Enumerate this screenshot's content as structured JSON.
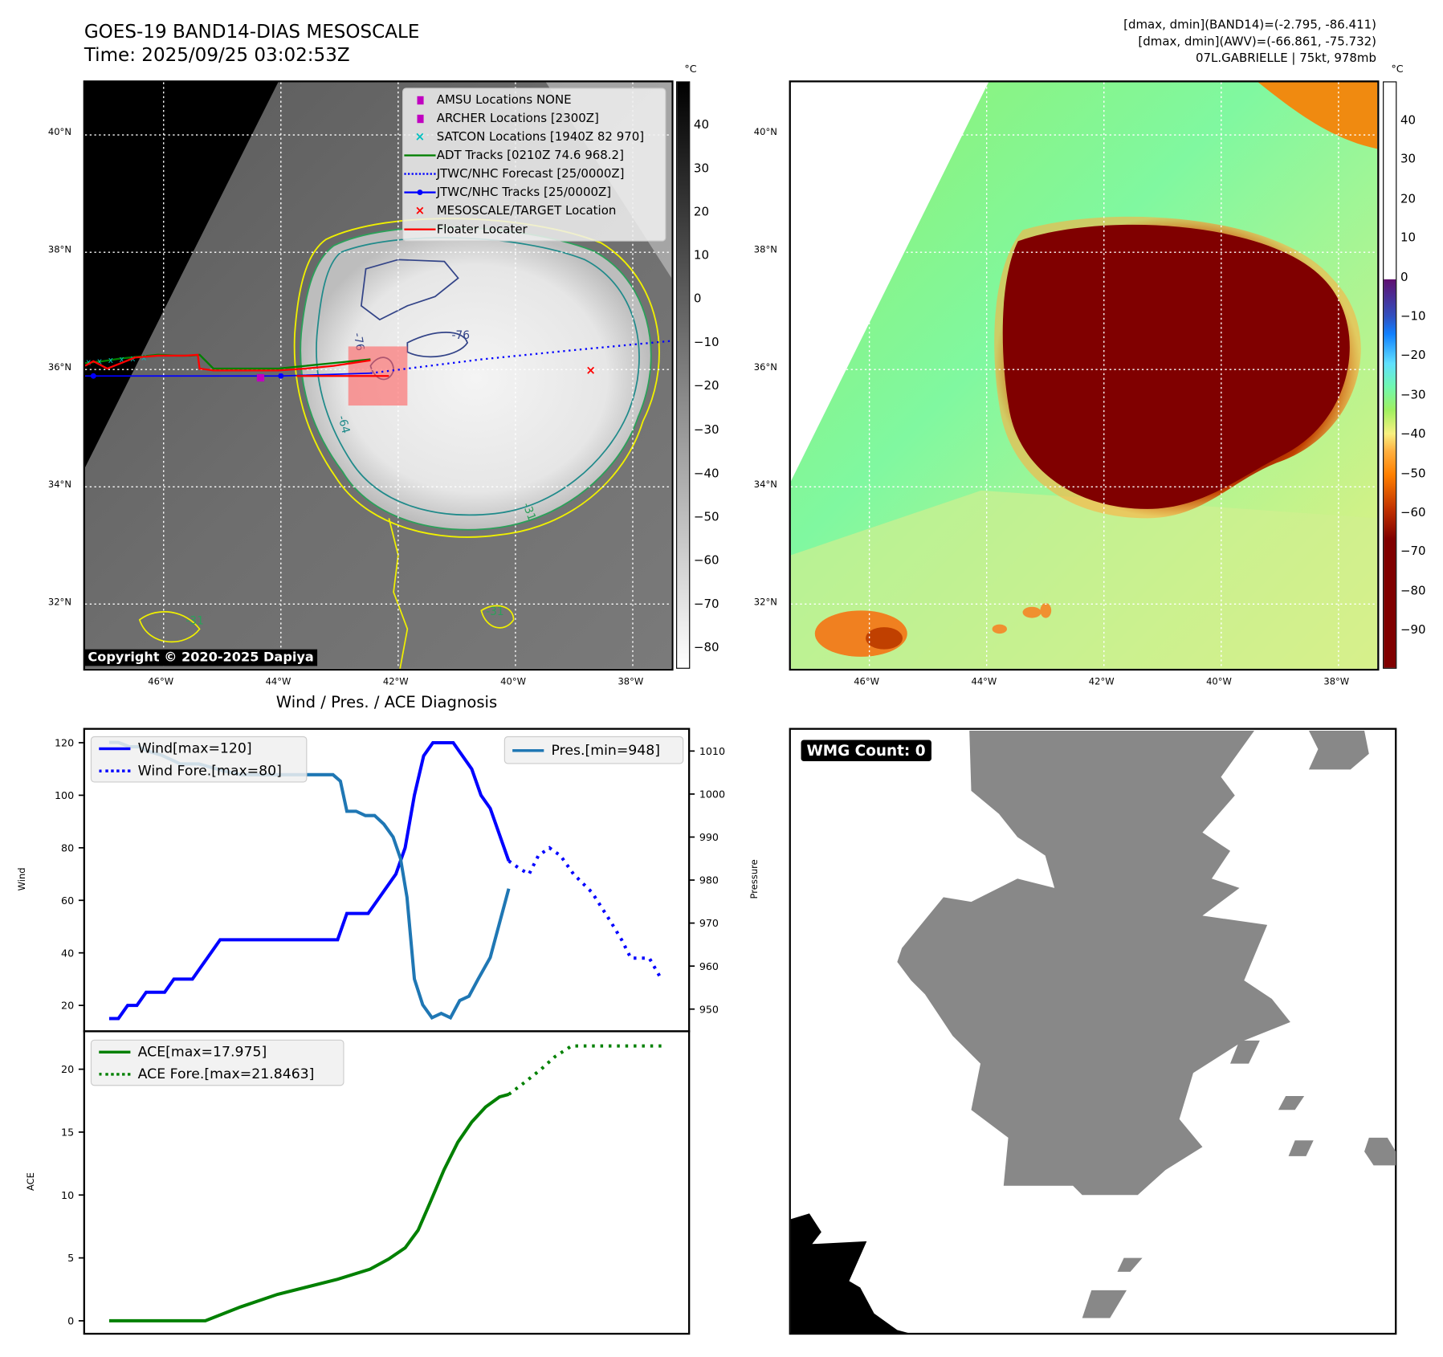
{
  "header": {
    "title_line1": "GOES-19 BAND14-DIAS MESOSCALE",
    "title_line2": "Time: 2025/09/25 03:02:53Z",
    "info_line1": "[dmax, dmin](BAND14)=(-2.795, -86.411)",
    "info_line2": "[dmax, dmin](AWV)=(-66.861, -75.732)",
    "info_line3": "07L.GABRIELLE | 75kt, 978mb"
  },
  "maps": {
    "lat_labels": [
      "40°N",
      "38°N",
      "36°N",
      "34°N",
      "32°N"
    ],
    "lon_labels": [
      "46°W",
      "44°W",
      "42°W",
      "40°W",
      "38°W"
    ],
    "unit": "°C",
    "gray_colorbar_ticks": [
      "40",
      "30",
      "20",
      "10",
      "0",
      "−10",
      "−20",
      "−30",
      "−40",
      "−50",
      "−60",
      "−70",
      "−80"
    ],
    "color_colorbar_ticks": [
      "40",
      "30",
      "20",
      "10",
      "0",
      "−10",
      "−20",
      "−30",
      "−40",
      "−50",
      "−60",
      "−70",
      "−80",
      "−90"
    ],
    "contour_labels": [
      "-76",
      "-76",
      "-64",
      "-31",
      "-31",
      "-31"
    ],
    "copyright": "Copyright © 2020-2025 Dapiya",
    "legend": [
      {
        "label": "AMSU Locations NONE",
        "color": "#c000c0",
        "symbol": "square"
      },
      {
        "label": "ARCHER Locations [2300Z]",
        "color": "#c000c0",
        "symbol": "square"
      },
      {
        "label": "SATCON Locations [1940Z 82 970]",
        "color": "#00c0c0",
        "symbol": "x"
      },
      {
        "label": "ADT Tracks [0210Z 74.6 968.2]",
        "color": "#008000",
        "symbol": "line"
      },
      {
        "label": "JTWC/NHC Forecast [25/0000Z]",
        "color": "#0000ff",
        "symbol": "dotted"
      },
      {
        "label": "JTWC/NHC Tracks [25/0000Z]",
        "color": "#0000ff",
        "symbol": "line-dot"
      },
      {
        "label": "MESOSCALE/TARGET Location",
        "color": "#ff0000",
        "symbol": "x"
      },
      {
        "label": "Floater Locater",
        "color": "#ff0000",
        "symbol": "line"
      }
    ]
  },
  "wmg": {
    "label": "WMG Count: 0"
  },
  "chart_data": [
    {
      "type": "line",
      "title": "Wind / Pres. / ACE Diagnosis",
      "ylabel": "Wind",
      "y2label": "Pressure",
      "xlim": [
        -2.7,
        62.7
      ],
      "ylim": [
        10,
        125
      ],
      "y2lim": [
        945,
        1014
      ],
      "yticks": [
        20,
        40,
        60,
        80,
        100,
        120
      ],
      "y2ticks": [
        950,
        960,
        970,
        980,
        990,
        1000,
        1010
      ],
      "series": [
        {
          "name": "Wind[max=120]",
          "axis": "left",
          "color": "#0000ff",
          "style": "solid",
          "x": [
            0,
            1,
            2,
            3,
            4,
            6,
            7,
            9,
            12,
            24.7,
            25.7,
            28,
            31,
            32,
            33,
            34,
            35,
            37.2,
            39.2,
            40.2,
            41.2,
            43.2
          ],
          "y": [
            15,
            15,
            20,
            20,
            25,
            25,
            30,
            30,
            45,
            45,
            55,
            55,
            70,
            80,
            100,
            115,
            120,
            120,
            110,
            100,
            95,
            75
          ]
        },
        {
          "name": "Wind Fore.[max=80]",
          "axis": "left",
          "color": "#0000ff",
          "style": "dotted",
          "x": [
            43.2,
            44.4,
            45.4,
            46.4,
            47.6,
            48.8,
            50.2,
            52.2,
            54.2,
            55.4,
            56.4,
            58.4,
            59.7
          ],
          "y": [
            75,
            72,
            70,
            77,
            80,
            77,
            70,
            63,
            52,
            45,
            38,
            38,
            30
          ]
        },
        {
          "name": "Pres.[min=948]",
          "axis": "right",
          "color": "#1f77b4",
          "style": "solid",
          "x": [
            0,
            1,
            2.2,
            3.2,
            4.2,
            5.7,
            7.7,
            9.7,
            12.2,
            14.2,
            24.2,
            25,
            25.7,
            26.7,
            27.7,
            28.7,
            29.7,
            30.7,
            31.5,
            32.2,
            33,
            33.9,
            34.9,
            35.9,
            36.9,
            37.9,
            38.9,
            39.9,
            41.2,
            43.2
          ],
          "y": [
            1012,
            1012,
            1011,
            1011,
            1010,
            1009,
            1007,
            1007,
            1005.5,
            1004.5,
            1004.5,
            1003,
            996,
            996,
            995,
            995,
            993,
            990,
            985,
            976,
            957,
            951,
            948,
            949,
            948,
            952,
            953,
            957,
            962,
            978
          ]
        }
      ]
    },
    {
      "type": "line",
      "ylabel": "ACE",
      "xlim": [
        -2.7,
        62.7
      ],
      "ylim": [
        -1.1,
        23
      ],
      "yticks": [
        0,
        5,
        10,
        15,
        20
      ],
      "series": [
        {
          "name": "ACE[max=17.975]",
          "color": "#008000",
          "style": "solid",
          "x": [
            0,
            10.4,
            14.2,
            18.2,
            24.7,
            28.2,
            30.2,
            32,
            33.4,
            34.7,
            36.2,
            37.7,
            39.2,
            40.7,
            42.2,
            43.2
          ],
          "y": [
            0,
            0,
            1.1,
            2.1,
            3.3,
            4.1,
            4.9,
            5.8,
            7.2,
            9.4,
            12,
            14.2,
            15.8,
            17,
            17.8,
            18
          ]
        },
        {
          "name": "ACE Fore.[max=21.8463]",
          "color": "#008000",
          "style": "dotted",
          "x": [
            43.2,
            45,
            46.7,
            48.2,
            50,
            59.7
          ],
          "y": [
            18,
            19,
            20,
            21,
            21.85,
            21.85
          ]
        }
      ]
    }
  ]
}
